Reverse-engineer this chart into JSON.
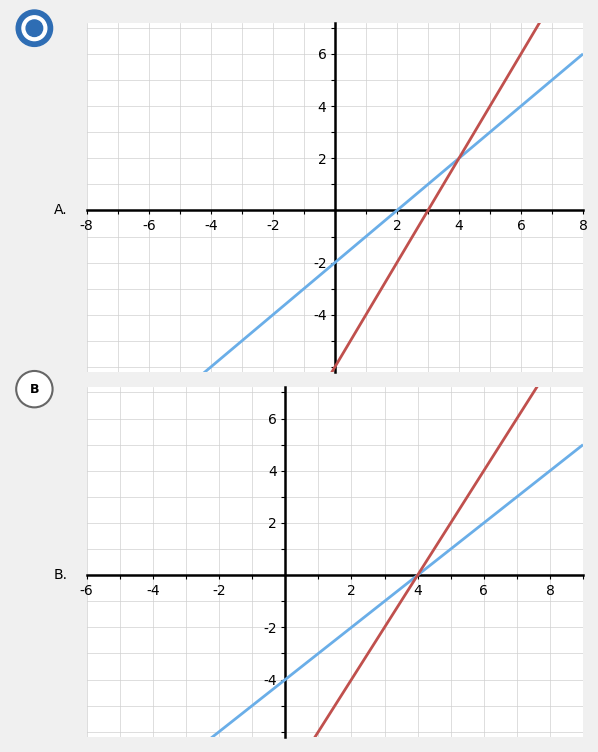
{
  "graph_A": {
    "label": "A.",
    "xlim": [
      -8,
      8
    ],
    "ylim": [
      -6.2,
      7.2
    ],
    "xtick_major": [
      -8,
      -6,
      -4,
      -2,
      2,
      4,
      6,
      8
    ],
    "ytick_major": [
      -4,
      -2,
      2,
      4,
      6
    ],
    "blue_slope": 1,
    "blue_intercept": -2,
    "red_slope": 2,
    "red_intercept": -6,
    "blue_color": "#6aaee8",
    "red_color": "#c0504d",
    "grid_color": "#d0d0d0",
    "bg_color": "#ffffff"
  },
  "graph_B": {
    "label": "B.",
    "xlim": [
      -6,
      9
    ],
    "ylim": [
      -6.2,
      7.2
    ],
    "xtick_major": [
      -6,
      -4,
      -2,
      2,
      4,
      6,
      8
    ],
    "ytick_major": [
      -4,
      -2,
      2,
      4,
      6
    ],
    "blue_slope": 1,
    "blue_intercept": -4,
    "red_slope": 2,
    "red_intercept": -8,
    "blue_color": "#6aaee8",
    "red_color": "#c0504d",
    "grid_color": "#d0d0d0",
    "bg_color": "#ffffff"
  },
  "radio_A_color": "#2e6db4",
  "fig_bg": "#f0f0f0"
}
